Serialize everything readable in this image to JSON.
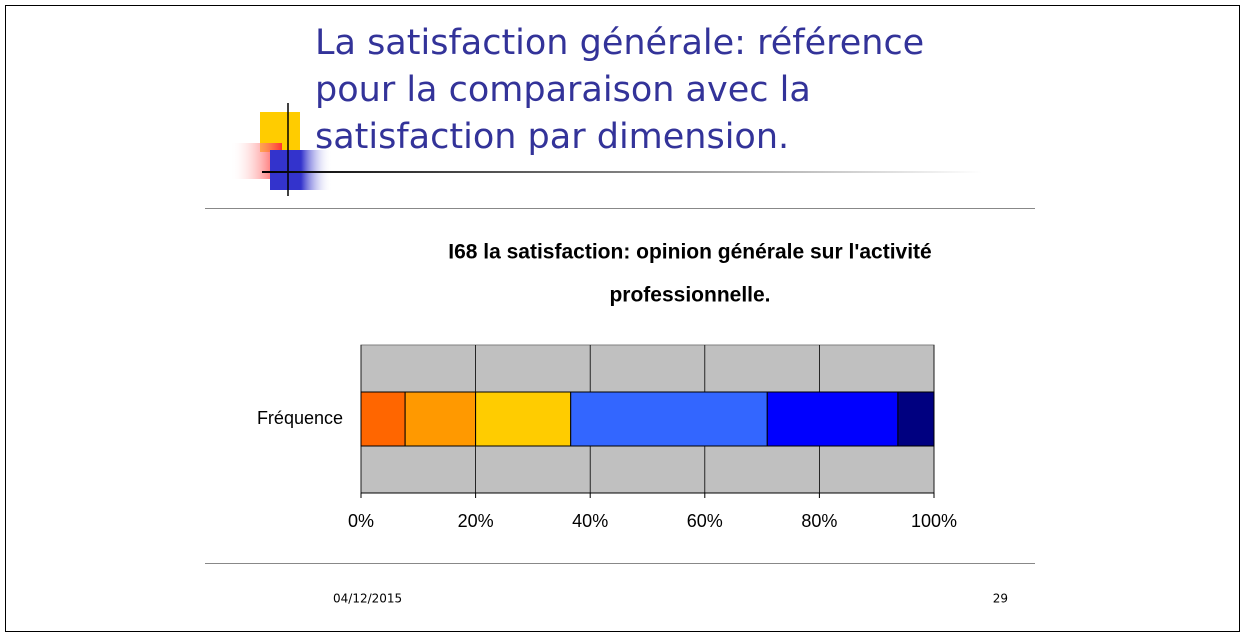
{
  "slide": {
    "title_lines": [
      "La satisfaction générale: référence",
      "pour la comparaison avec la",
      "satisfaction par dimension."
    ],
    "date": "04/12/2015",
    "page": "29"
  },
  "chart_data": {
    "type": "bar",
    "orientation": "horizontal",
    "stacked": true,
    "title_lines": [
      "I68 la satisfaction: opinion générale sur l'activité",
      "professionnelle."
    ],
    "categories": [
      "Fréquence"
    ],
    "series": [
      {
        "color": "#ff6600",
        "values": [
          7.7
        ]
      },
      {
        "color": "#ff9900",
        "values": [
          12.3
        ]
      },
      {
        "color": "#ffcc00",
        "values": [
          16.6
        ]
      },
      {
        "color": "#3366ff",
        "values": [
          34.3
        ]
      },
      {
        "color": "#0000ff",
        "values": [
          22.8
        ]
      },
      {
        "color": "#000080",
        "values": [
          6.3
        ]
      }
    ],
    "xlim": [
      0,
      100
    ],
    "xticks": [
      {
        "value": 0,
        "label": "0%"
      },
      {
        "value": 20,
        "label": "20%"
      },
      {
        "value": 40,
        "label": "40%"
      },
      {
        "value": 60,
        "label": "60%"
      },
      {
        "value": 80,
        "label": "80%"
      },
      {
        "value": 100,
        "label": "100%"
      }
    ],
    "grid": true,
    "plot_background": "#c0c0c0"
  }
}
